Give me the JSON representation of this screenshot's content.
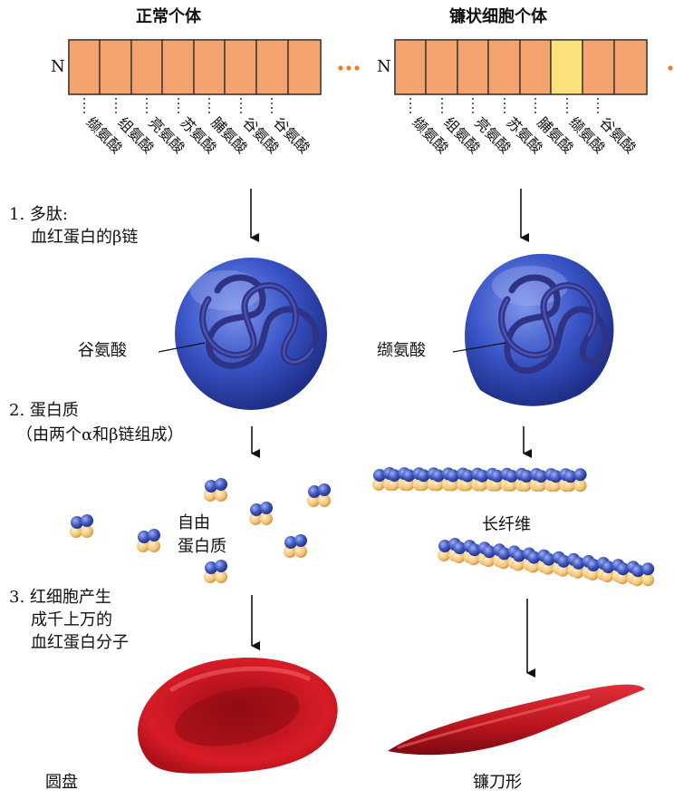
{
  "normal": {
    "title": "正常个体",
    "n_label": "N",
    "box_count": 8,
    "amino_acids": [
      "缬氨酸",
      "组氨酸",
      "亮氨酸",
      "苏氨酸",
      "脯氨酸",
      "谷氨酸",
      "谷氨酸"
    ],
    "residue_label": "谷氨酸",
    "shape_label": "圆盘"
  },
  "sickle": {
    "title": "镰状细胞个体",
    "n_label": "N",
    "box_count": 8,
    "amino_acids": [
      "缬氨酸",
      "组氨酸",
      "亮氨酸",
      "苏氨酸",
      "脯氨酸",
      "缬氨酸",
      "谷氨酸"
    ],
    "residue_label": "缬氨酸",
    "fiber_label": "长纤维",
    "shape_label": "镰刀形"
  },
  "steps": {
    "step1_line1": "1. 多肽:",
    "step1_line2": "血红蛋白的β链",
    "step2_line1": "2. 蛋白质",
    "step2_line2": "（由两个α和β链组成）",
    "step3_line1": "3. 红细胞产生",
    "step3_line2": "成千上万的",
    "step3_line3": "血红蛋白分子"
  },
  "free_protein_label_line1": "自由",
  "free_protein_label_line2": "蛋白质",
  "colors": {
    "box_fill": "#f5a36e",
    "mutant_box_fill": "#fbe27a",
    "box_stroke": "#333333",
    "dots": "#f07b22",
    "globule": "#3a55c8",
    "chain": "#3a3e93",
    "subunit_blue": "#3f58c0",
    "subunit_tan": "#f3c47a",
    "cell_red": "#c8141e"
  }
}
